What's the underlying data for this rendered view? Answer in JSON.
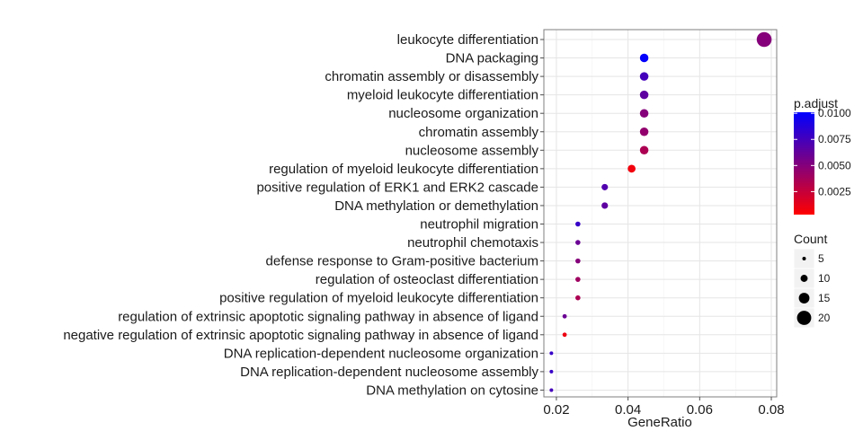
{
  "chart_data": {
    "type": "scatter",
    "xlabel": "GeneRatio",
    "ylabel": "",
    "xlim": [
      0.0165,
      0.0815
    ],
    "xticks": [
      0.02,
      0.04,
      0.06,
      0.08
    ],
    "xtick_labels": [
      "0.02",
      "0.04",
      "0.06",
      "0.08"
    ],
    "grid": true,
    "legend_placement": "right",
    "color_by": "p.adjust",
    "size_by": "Count",
    "color_legend": {
      "title": "p.adjust",
      "range": [
        0.0003,
        0.0101
      ],
      "low_color": "#ff0000",
      "high_color": "#0000ff",
      "ticks": [
        0.01,
        0.0075,
        0.005,
        0.0025
      ],
      "tick_labels": [
        "0.0100",
        "0.0075",
        "0.0050",
        "0.0025"
      ]
    },
    "size_legend": {
      "title": "Count",
      "values": [
        5,
        10,
        15,
        20
      ],
      "labels": [
        "5",
        "10",
        "15",
        "20"
      ]
    },
    "points": [
      {
        "term": "leukocyte differentiation",
        "gene_ratio": 0.078,
        "p_adjust": 0.005,
        "count": 21
      },
      {
        "term": "DNA packaging",
        "gene_ratio": 0.0445,
        "p_adjust": 0.01,
        "count": 12
      },
      {
        "term": "chromatin assembly or disassembly",
        "gene_ratio": 0.0445,
        "p_adjust": 0.0075,
        "count": 12
      },
      {
        "term": "myeloid leukocyte differentiation",
        "gene_ratio": 0.0445,
        "p_adjust": 0.0065,
        "count": 12
      },
      {
        "term": "nucleosome organization",
        "gene_ratio": 0.0445,
        "p_adjust": 0.005,
        "count": 12
      },
      {
        "term": "chromatin assembly",
        "gene_ratio": 0.0445,
        "p_adjust": 0.0045,
        "count": 12
      },
      {
        "term": "nucleosome assembly",
        "gene_ratio": 0.0445,
        "p_adjust": 0.0035,
        "count": 12
      },
      {
        "term": "regulation of myeloid leukocyte differentiation",
        "gene_ratio": 0.041,
        "p_adjust": 0.0008,
        "count": 11
      },
      {
        "term": "positive regulation of ERK1 and ERK2 cascade",
        "gene_ratio": 0.0335,
        "p_adjust": 0.007,
        "count": 9
      },
      {
        "term": "DNA methylation or demethylation",
        "gene_ratio": 0.0335,
        "p_adjust": 0.0065,
        "count": 9
      },
      {
        "term": "neutrophil migration",
        "gene_ratio": 0.026,
        "p_adjust": 0.008,
        "count": 7
      },
      {
        "term": "neutrophil chemotaxis",
        "gene_ratio": 0.026,
        "p_adjust": 0.006,
        "count": 7
      },
      {
        "term": "defense response to Gram-positive bacterium",
        "gene_ratio": 0.026,
        "p_adjust": 0.005,
        "count": 7
      },
      {
        "term": "regulation of osteoclast differentiation",
        "gene_ratio": 0.026,
        "p_adjust": 0.004,
        "count": 7
      },
      {
        "term": "positive regulation of myeloid leukocyte differentiation",
        "gene_ratio": 0.026,
        "p_adjust": 0.0035,
        "count": 7
      },
      {
        "term": "regulation of extrinsic apoptotic signaling pathway in absence of ligand",
        "gene_ratio": 0.0223,
        "p_adjust": 0.006,
        "count": 6
      },
      {
        "term": "negative regulation of extrinsic apoptotic signaling pathway in absence of ligand",
        "gene_ratio": 0.0223,
        "p_adjust": 0.001,
        "count": 6
      },
      {
        "term": "DNA replication-dependent nucleosome organization",
        "gene_ratio": 0.0186,
        "p_adjust": 0.008,
        "count": 5
      },
      {
        "term": "DNA replication-dependent nucleosome assembly",
        "gene_ratio": 0.0186,
        "p_adjust": 0.008,
        "count": 5
      },
      {
        "term": "DNA methylation on cytosine",
        "gene_ratio": 0.0186,
        "p_adjust": 0.0075,
        "count": 5
      }
    ]
  }
}
